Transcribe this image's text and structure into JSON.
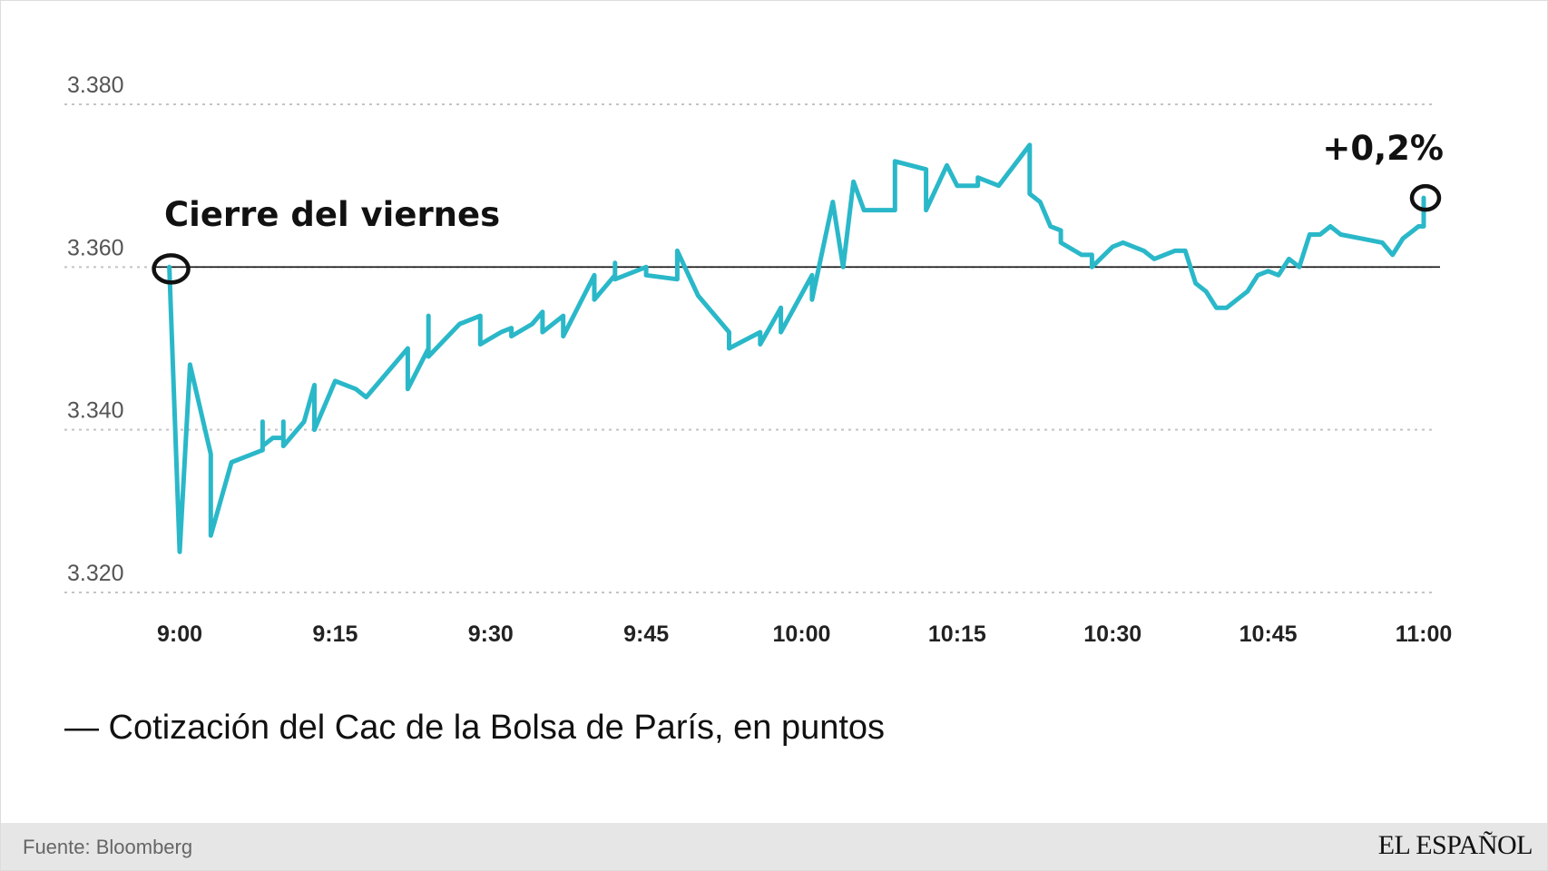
{
  "chart_data": {
    "type": "line",
    "title": "",
    "xlabel": "",
    "ylabel": "",
    "x_ticks": [
      "9:00",
      "9:15",
      "9:30",
      "9:45",
      "10:00",
      "10:15",
      "10:30",
      "10:45",
      "11:00"
    ],
    "xlim_minutes": [
      0,
      120
    ],
    "ylim": [
      3320,
      3380
    ],
    "y_ticks": [
      {
        "value": 3380,
        "label": "3.380"
      },
      {
        "value": 3360,
        "label": "3.360"
      },
      {
        "value": 3340,
        "label": "3.340"
      },
      {
        "value": 3320,
        "label": "3.320"
      }
    ],
    "grid": "horizontal dotted",
    "reference_line": {
      "value": 3360.0,
      "label": "Cierre del viernes"
    },
    "end_annotation": "+0,2%",
    "series": [
      {
        "name": "Cotización del Cac de la Bolsa de París, en puntos",
        "color": "#2ab8c9",
        "points": [
          [
            -1,
            3360
          ],
          [
            0,
            3325
          ],
          [
            1,
            3348
          ],
          [
            3,
            3337
          ],
          [
            3,
            3327
          ],
          [
            5,
            3336
          ],
          [
            7,
            3337
          ],
          [
            8,
            3337.5
          ],
          [
            8,
            3341
          ],
          [
            8,
            3338
          ],
          [
            9,
            3339
          ],
          [
            10,
            3339
          ],
          [
            10,
            3341
          ],
          [
            10,
            3338
          ],
          [
            12,
            3341
          ],
          [
            13,
            3345.5
          ],
          [
            13,
            3340
          ],
          [
            15,
            3346
          ],
          [
            17,
            3345
          ],
          [
            18,
            3344
          ],
          [
            20,
            3347
          ],
          [
            22,
            3350
          ],
          [
            22,
            3345
          ],
          [
            24,
            3350
          ],
          [
            24,
            3354
          ],
          [
            24,
            3349
          ],
          [
            27,
            3353
          ],
          [
            29,
            3354
          ],
          [
            29,
            3350.5
          ],
          [
            31,
            3352
          ],
          [
            32,
            3352.5
          ],
          [
            32,
            3351.5
          ],
          [
            34,
            3353
          ],
          [
            35,
            3354.5
          ],
          [
            35,
            3352
          ],
          [
            37,
            3354
          ],
          [
            37,
            3351.5
          ],
          [
            40,
            3359
          ],
          [
            40,
            3356
          ],
          [
            42,
            3359
          ],
          [
            42,
            3360.5
          ],
          [
            42,
            3358.5
          ],
          [
            45,
            3360
          ],
          [
            45,
            3359
          ],
          [
            48,
            3358.5
          ],
          [
            48,
            3362
          ],
          [
            50,
            3356.5
          ],
          [
            51,
            3355
          ],
          [
            53,
            3352
          ],
          [
            53,
            3350
          ],
          [
            56,
            3352
          ],
          [
            56,
            3350.5
          ],
          [
            58,
            3355
          ],
          [
            58,
            3352
          ],
          [
            61,
            3359
          ],
          [
            61,
            3356
          ],
          [
            63,
            3368
          ],
          [
            64,
            3360
          ],
          [
            65,
            3370.5
          ],
          [
            66,
            3367
          ],
          [
            69,
            3367
          ],
          [
            69,
            3373
          ],
          [
            72,
            3372
          ],
          [
            72,
            3367
          ],
          [
            74,
            3372.5
          ],
          [
            75,
            3370
          ],
          [
            77,
            3370
          ],
          [
            77,
            3371
          ],
          [
            79,
            3370
          ],
          [
            82,
            3375
          ],
          [
            82,
            3369
          ],
          [
            83,
            3368
          ],
          [
            84,
            3365
          ],
          [
            85,
            3364.5
          ],
          [
            85,
            3363
          ],
          [
            87,
            3361.5
          ],
          [
            88,
            3361.5
          ],
          [
            88,
            3360
          ],
          [
            90,
            3362.5
          ],
          [
            91,
            3363
          ],
          [
            92,
            3362.5
          ],
          [
            93,
            3362
          ],
          [
            94,
            3361
          ],
          [
            95,
            3361.5
          ],
          [
            96,
            3362
          ],
          [
            97,
            3362
          ],
          [
            98,
            3358
          ],
          [
            99,
            3357
          ],
          [
            100,
            3355
          ],
          [
            101,
            3355
          ],
          [
            102,
            3356
          ],
          [
            103,
            3357
          ],
          [
            104,
            3359
          ],
          [
            105,
            3359.5
          ],
          [
            106,
            3359
          ],
          [
            107,
            3361
          ],
          [
            108,
            3360
          ],
          [
            109,
            3364
          ],
          [
            110,
            3364
          ],
          [
            111,
            3365
          ],
          [
            112,
            3364
          ],
          [
            114,
            3363.5
          ],
          [
            116,
            3363
          ],
          [
            117,
            3361.5
          ],
          [
            118,
            3363.5
          ],
          [
            119,
            3364.5
          ],
          [
            119.5,
            3365
          ],
          [
            120,
            3365
          ],
          [
            120,
            3368.5
          ]
        ]
      }
    ]
  },
  "legend": {
    "text": "— Cotización del Cac de la Bolsa de París, en puntos"
  },
  "footer": {
    "source": "Fuente: Bloomberg",
    "brand": "EL ESPAÑOL"
  }
}
